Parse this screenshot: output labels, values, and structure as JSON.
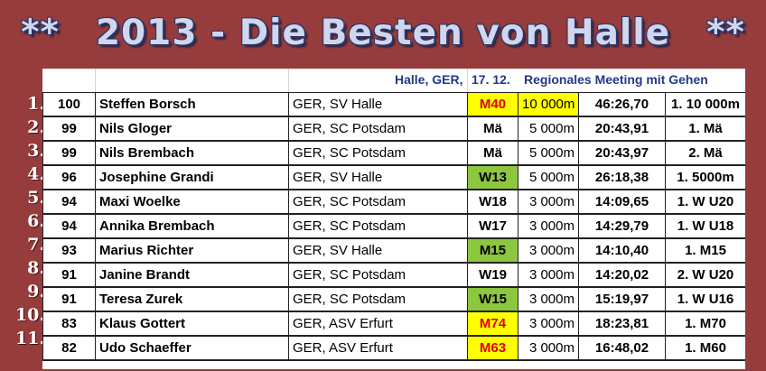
{
  "title": {
    "left_stars": "**",
    "main": "2013 - Die Besten von Halle",
    "right_stars": "**"
  },
  "meeting": {
    "location": "Halle, GER,",
    "date": "17. 12.",
    "name": "Regionales Meeting mit Gehen"
  },
  "rows": [
    {
      "rank": "1.",
      "points": "100",
      "name": "Steffen Borsch",
      "club": "GER, SV Halle",
      "class": "M40",
      "class_style": "red",
      "distance": "10 000m",
      "dist_highlight": true,
      "time": "46:26,70",
      "place": "1. 10 000m"
    },
    {
      "rank": "2.",
      "points": "99",
      "name": "Nils Gloger",
      "club": "GER, SC Potsdam",
      "class": "Mä",
      "class_style": "",
      "distance": "5 000m",
      "dist_highlight": false,
      "time": "20:43,91",
      "place": "1. Mä"
    },
    {
      "rank": "3.",
      "points": "99",
      "name": "Nils Brembach",
      "club": "GER, SC Potsdam",
      "class": "Mä",
      "class_style": "",
      "distance": "5 000m",
      "dist_highlight": false,
      "time": "20:43,97",
      "place": "2. Mä"
    },
    {
      "rank": "4.",
      "points": "96",
      "name": "Josephine Grandi",
      "club": "GER, SV Halle",
      "class": "W13",
      "class_style": "green",
      "distance": "5 000m",
      "dist_highlight": false,
      "time": "26:18,38",
      "place": "1. 5000m"
    },
    {
      "rank": "5.",
      "points": "94",
      "name": "Maxi Woelke",
      "club": "GER, SC Potsdam",
      "class": "W18",
      "class_style": "",
      "distance": "3 000m",
      "dist_highlight": false,
      "time": "14:09,65",
      "place": "1. W U20"
    },
    {
      "rank": "6.",
      "points": "94",
      "name": "Annika Brembach",
      "club": "GER, SC Potsdam",
      "class": "W17",
      "class_style": "",
      "distance": "3 000m",
      "dist_highlight": false,
      "time": "14:29,79",
      "place": "1. W U18"
    },
    {
      "rank": "7.",
      "points": "93",
      "name": "Marius Richter",
      "club": "GER, SV Halle",
      "class": "M15",
      "class_style": "green",
      "distance": "3 000m",
      "dist_highlight": false,
      "time": "14:10,40",
      "place": "1. M15"
    },
    {
      "rank": "8.",
      "points": "91",
      "name": "Janine Brandt",
      "club": "GER, SC Potsdam",
      "class": "W19",
      "class_style": "",
      "distance": "3 000m",
      "dist_highlight": false,
      "time": "14:20,02",
      "place": "2. W U20"
    },
    {
      "rank": "9.",
      "points": "91",
      "name": "Teresa Zurek",
      "club": "GER, SC Potsdam",
      "class": "W15",
      "class_style": "green",
      "distance": "3 000m",
      "dist_highlight": false,
      "time": "15:19,97",
      "place": "1. W U16"
    },
    {
      "rank": "10.",
      "points": "83",
      "name": "Klaus Gottert",
      "club": "GER, ASV Erfurt",
      "class": "M74",
      "class_style": "red",
      "distance": "3 000m",
      "dist_highlight": false,
      "time": "18:23,81",
      "place": "1. M70"
    },
    {
      "rank": "11.",
      "points": "82",
      "name": "Udo Schaeffer",
      "club": "GER, ASV Erfurt",
      "class": "M63",
      "class_style": "red",
      "distance": "3 000m",
      "dist_highlight": false,
      "time": "16:48,02",
      "place": "1. M60"
    }
  ]
}
